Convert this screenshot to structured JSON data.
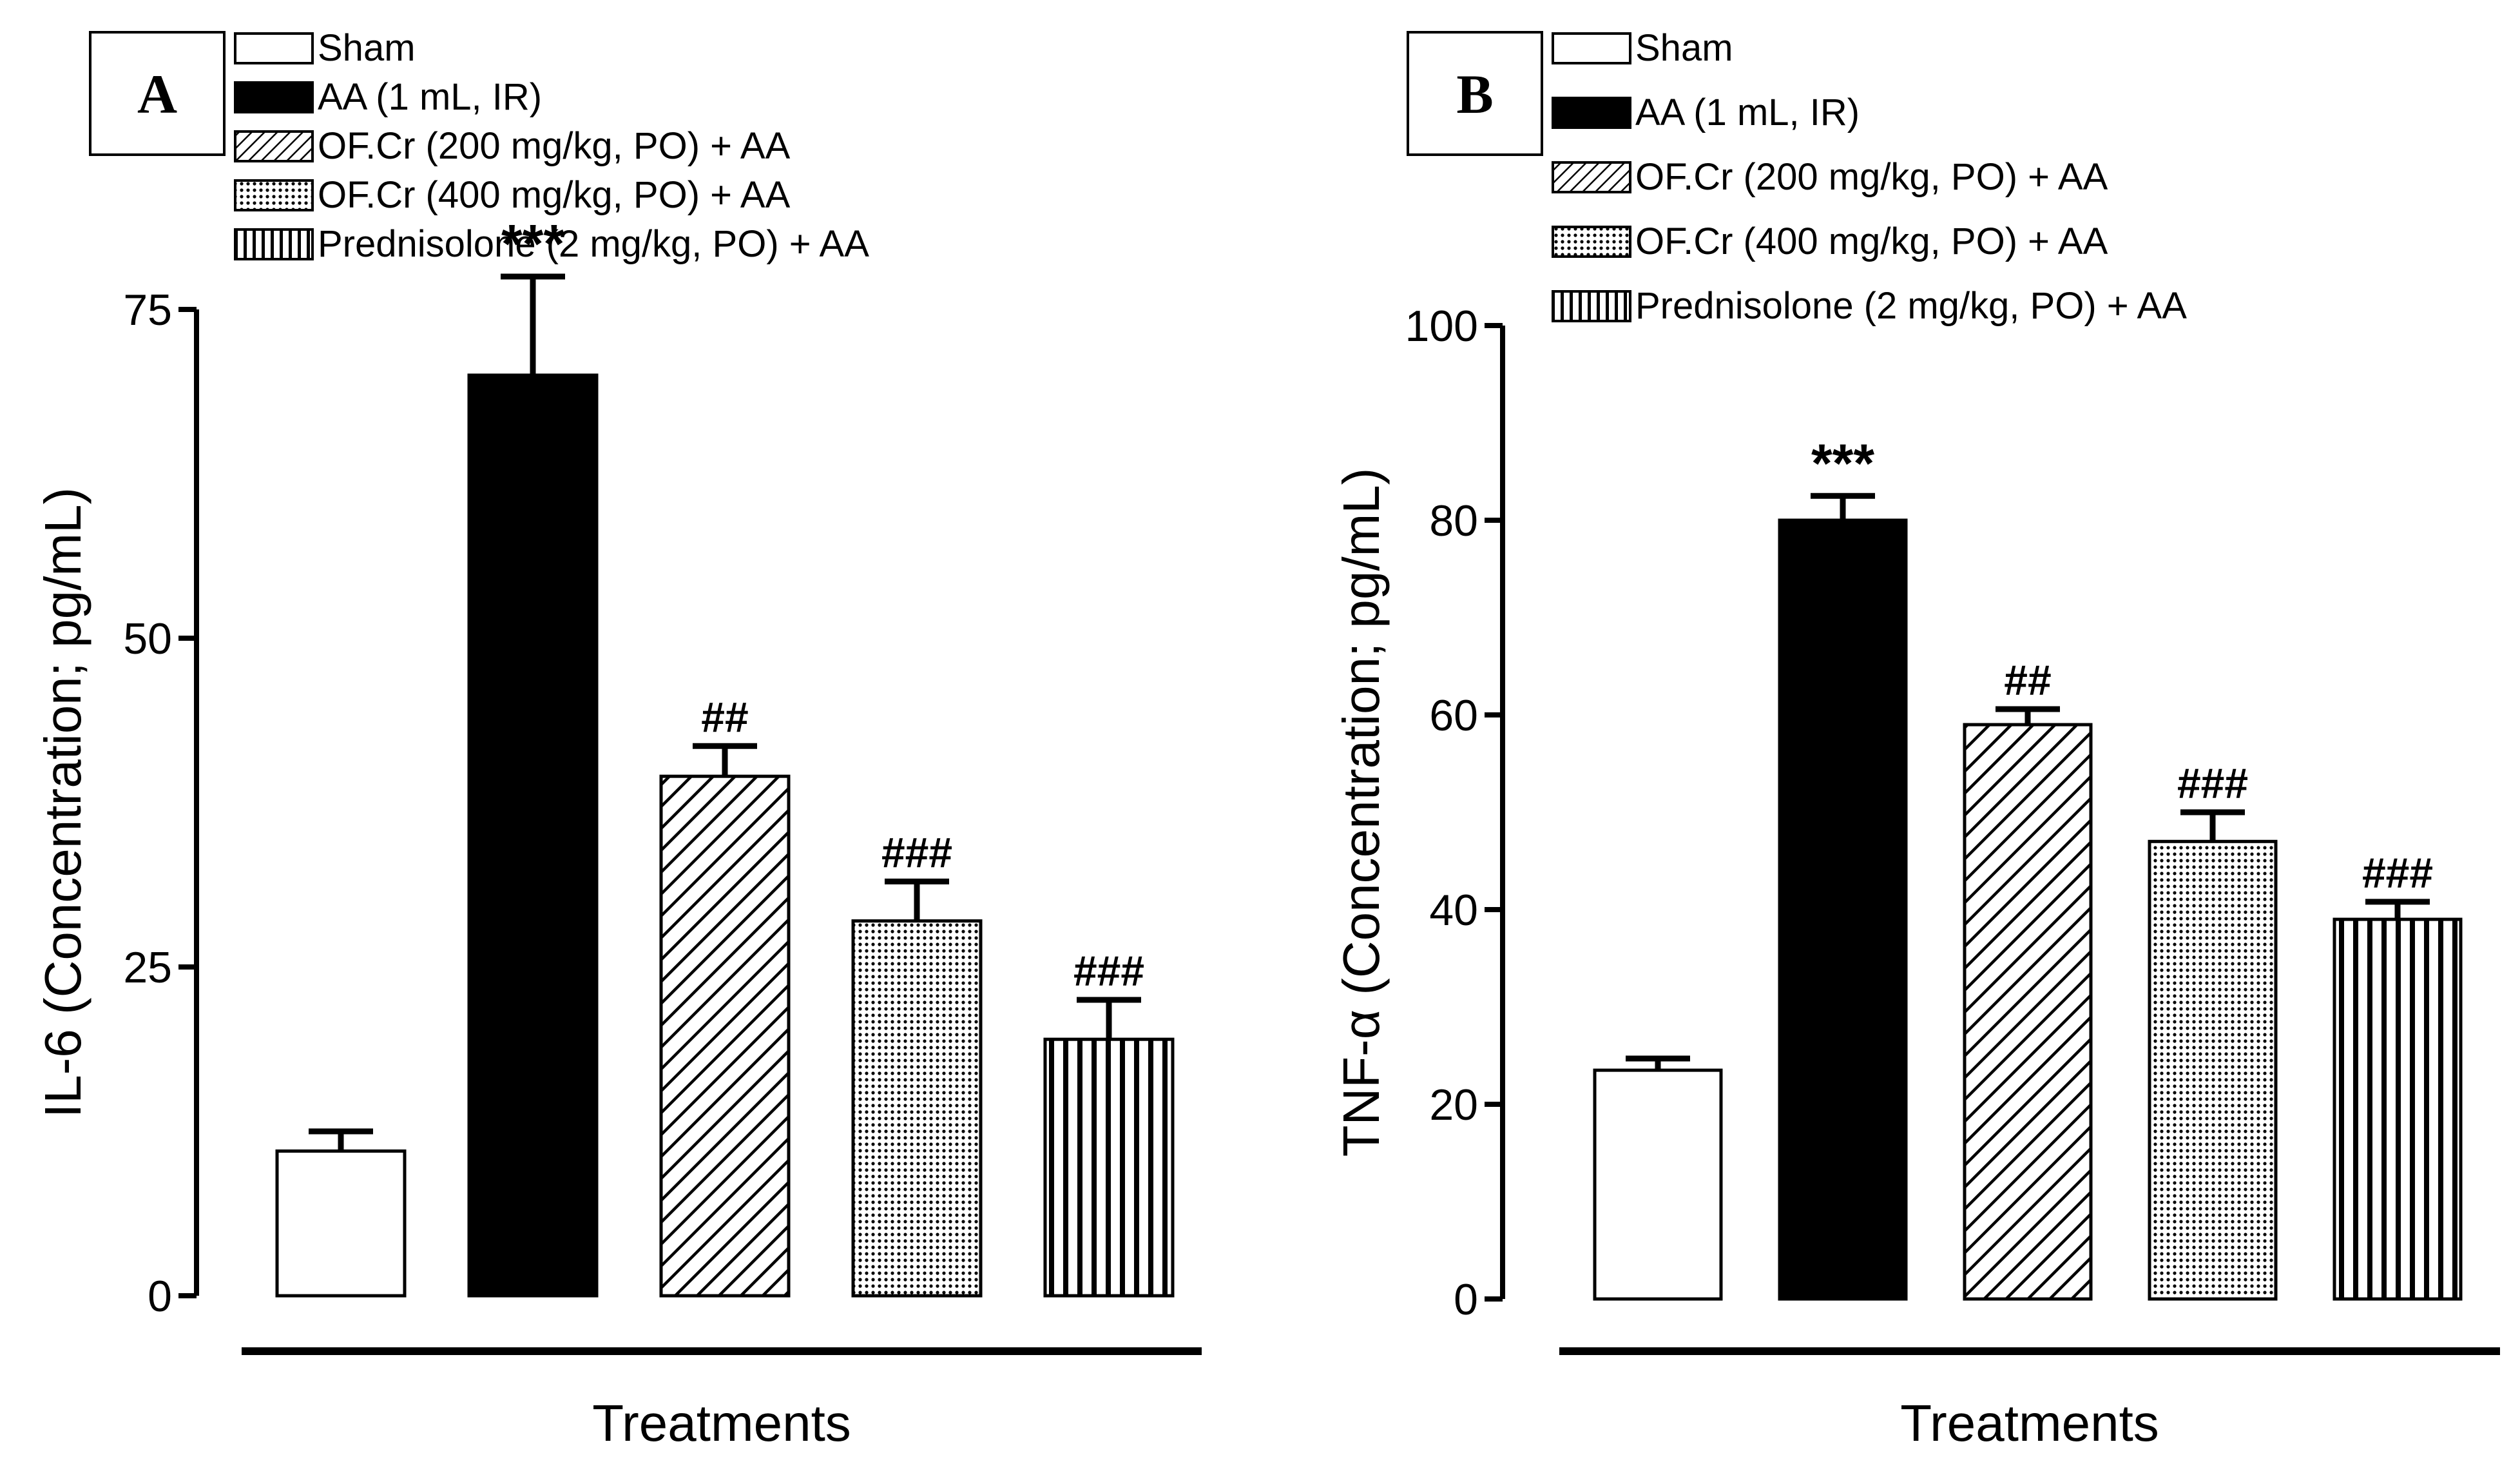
{
  "colors": {
    "ink": "#000000",
    "paper": "#ffffff"
  },
  "chart_data": [
    {
      "type": "bar",
      "panel_label": "A",
      "title": "",
      "xlabel": "Treatments",
      "ylabel": "IL-6 (Concentration; pg/mL)",
      "ylim": [
        0,
        75
      ],
      "yticks": [
        "0",
        "25",
        "50",
        "75"
      ],
      "grid": false,
      "legend_position": "top",
      "categories": [
        "Sham",
        "AA (1 mL, IR)",
        "OF.Cr (200 mg/kg, PO) + AA",
        "OF.Cr (400 mg/kg, PO) + AA",
        "Prednisolone (2 mg/kg, PO) + AA"
      ],
      "patterns": [
        "empty",
        "solid",
        "hatch",
        "dots",
        "vlines"
      ],
      "values": [
        11,
        70,
        39.5,
        28.5,
        19.5
      ],
      "errors": [
        1.5,
        7.5,
        2.3,
        3,
        3
      ],
      "annotations": [
        "",
        "***",
        "##",
        "###",
        "###"
      ]
    },
    {
      "type": "bar",
      "panel_label": "B",
      "title": "",
      "xlabel": "Treatments",
      "ylabel": "TNF-α (Concentration; pg/mL)",
      "ylim": [
        0,
        100
      ],
      "yticks": [
        "0",
        "20",
        "40",
        "60",
        "80",
        "100"
      ],
      "grid": false,
      "legend_position": "top",
      "categories": [
        "Sham",
        "AA (1 mL, IR)",
        "OF.Cr (200 mg/kg, PO) + AA",
        "OF.Cr (400 mg/kg, PO) + AA",
        "Prednisolone (2 mg/kg, PO) + AA"
      ],
      "patterns": [
        "empty",
        "solid",
        "hatch",
        "dots",
        "vlines"
      ],
      "values": [
        23.5,
        80,
        59,
        47,
        39
      ],
      "errors": [
        1.2,
        2.5,
        1.6,
        3,
        1.8
      ],
      "annotations": [
        "",
        "***",
        "##",
        "###",
        "###"
      ]
    }
  ]
}
